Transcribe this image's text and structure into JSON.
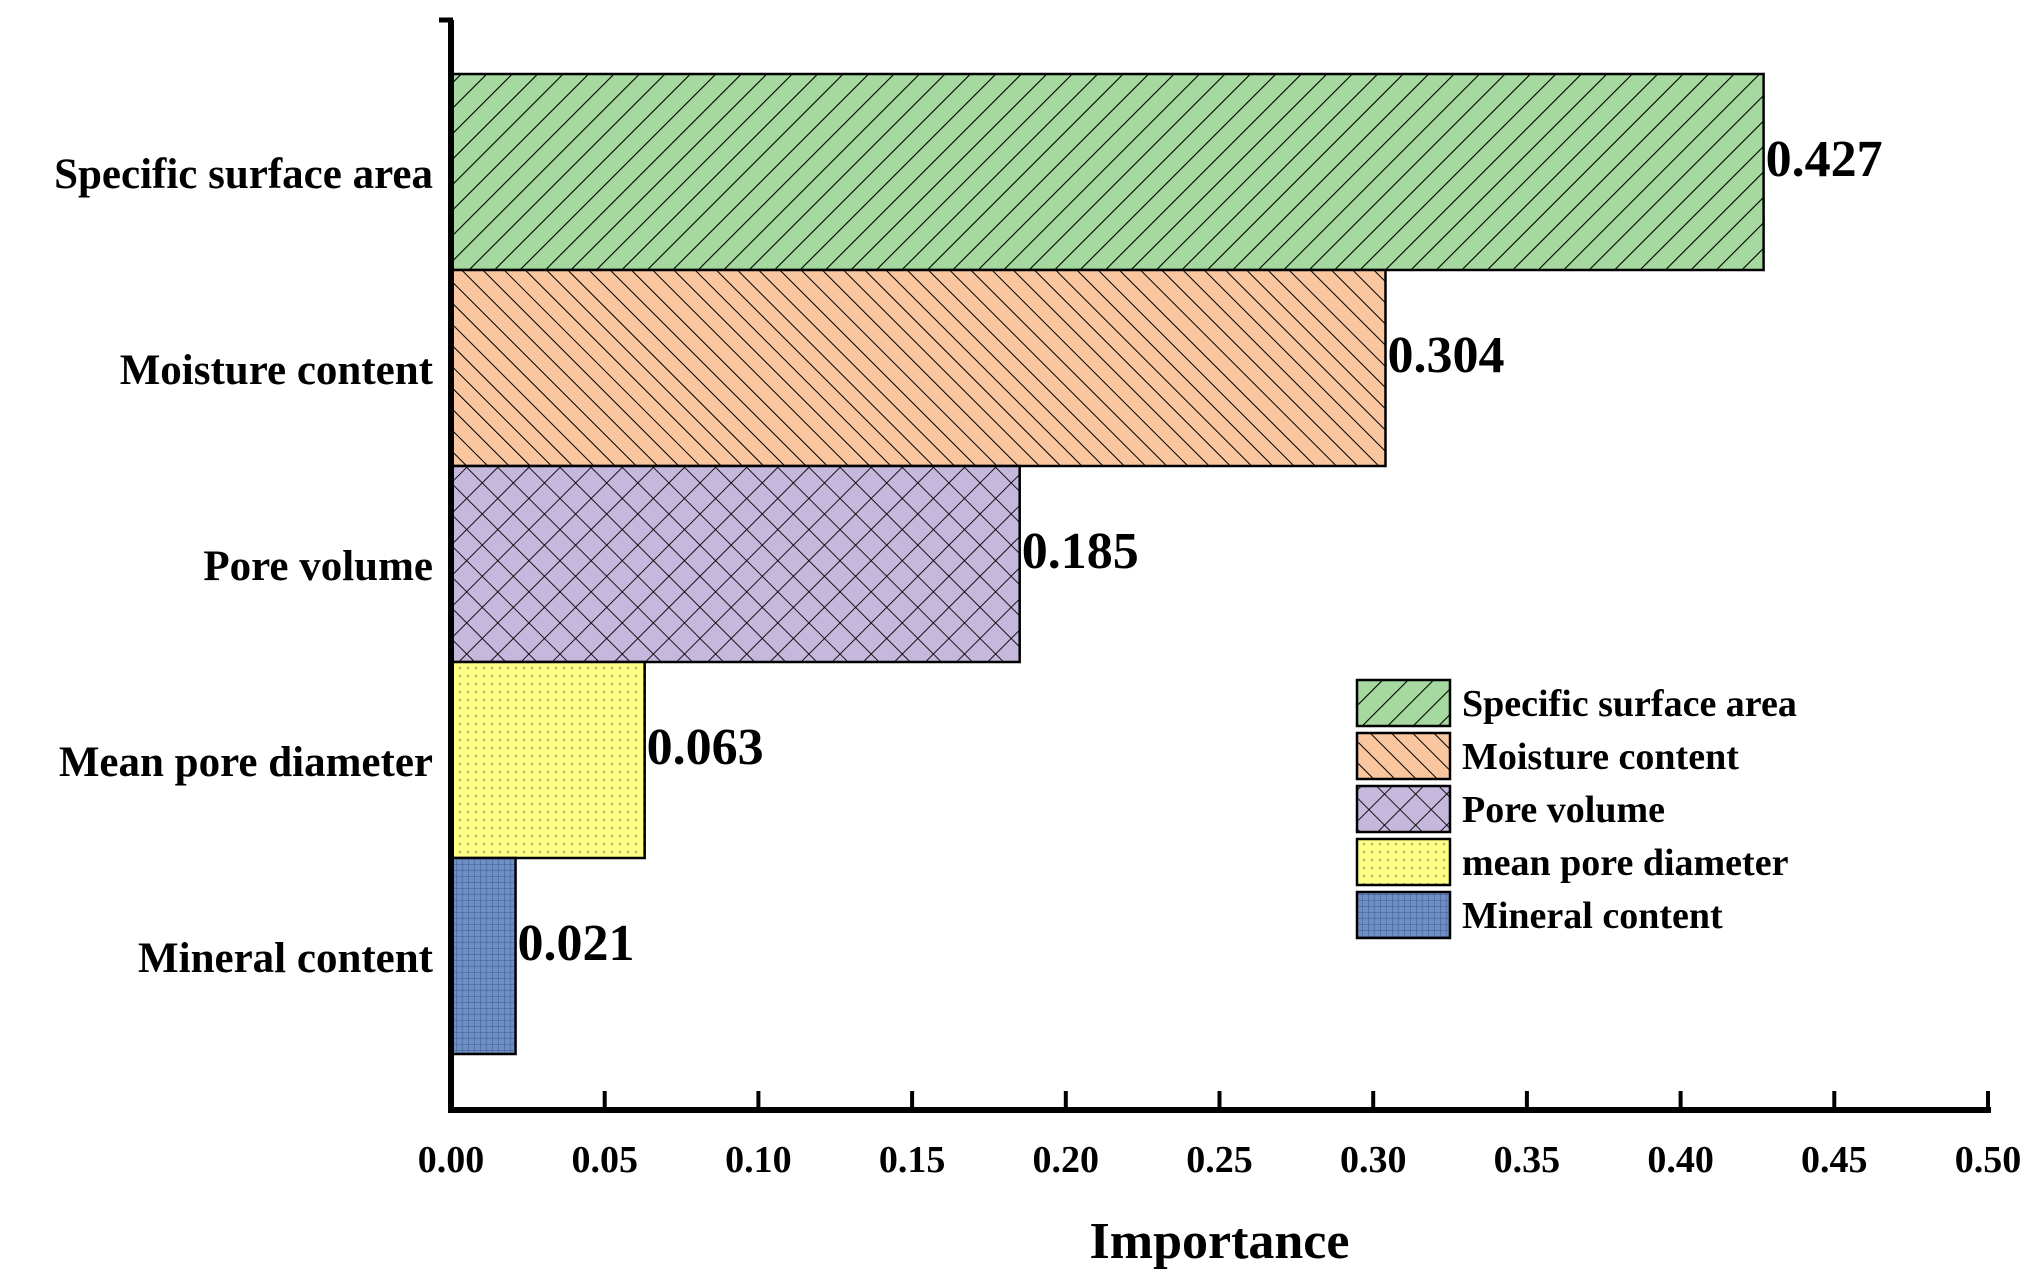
{
  "chart_data": {
    "type": "bar",
    "orientation": "horizontal",
    "title": "",
    "xlabel": "Importance",
    "ylabel": "",
    "xlim": [
      0,
      0.5
    ],
    "x_ticks": [
      "0.00",
      "0.05",
      "0.10",
      "0.15",
      "0.20",
      "0.25",
      "0.30",
      "0.35",
      "0.40",
      "0.45",
      "0.50"
    ],
    "grid": false,
    "categories": [
      "Specific surface area",
      "Moisture content",
      "Pore volume",
      "Mean pore diameter",
      "Mineral content"
    ],
    "values": [
      0.427,
      0.304,
      0.185,
      0.063,
      0.021
    ],
    "value_labels": [
      "0.427",
      "0.304",
      "0.185",
      "0.063",
      "0.021"
    ],
    "colors": [
      "#a6d9a0",
      "#f9c6a0",
      "#c5b8dc",
      "#ffff88",
      "#6f8fc4"
    ],
    "patterns": [
      "diag-right",
      "diag-left",
      "crosshatch",
      "dots",
      "grid"
    ],
    "legend": {
      "placement": "center-right",
      "entries": [
        "Specific surface area",
        "Moisture content",
        "Pore volume",
        "mean pore diameter",
        "Mineral content"
      ]
    }
  }
}
